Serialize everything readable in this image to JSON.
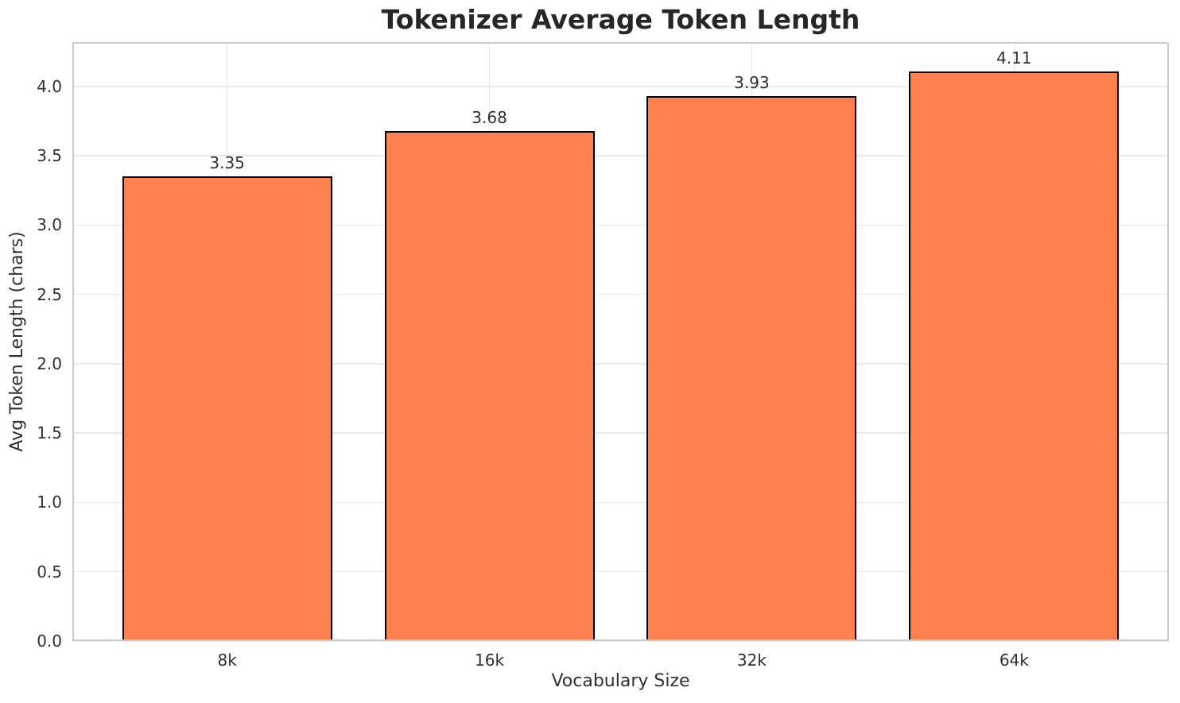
{
  "chart_data": {
    "type": "bar",
    "title": "Tokenizer Average Token Length",
    "xlabel": "Vocabulary Size",
    "ylabel": "Avg Token Length (chars)",
    "categories": [
      "8k",
      "16k",
      "32k",
      "64k"
    ],
    "values": [
      3.35,
      3.68,
      3.93,
      4.11
    ],
    "value_labels": [
      "3.35",
      "3.68",
      "3.93",
      "4.11"
    ],
    "ytick_values": [
      0.0,
      0.5,
      1.0,
      1.5,
      2.0,
      2.5,
      3.0,
      3.5,
      4.0
    ],
    "ytick_labels": [
      "0.0",
      "0.5",
      "1.0",
      "1.5",
      "2.0",
      "2.5",
      "3.0",
      "3.5",
      "4.0"
    ],
    "ylim": [
      0,
      4.32
    ],
    "grid": true,
    "legend": null,
    "colors": {
      "bar_fill": "#FF7F50",
      "bar_edge": "#000000",
      "gridline": "#e9e9e9",
      "spine": "#cccccc",
      "title_text": "#262626",
      "tick_text": "#303030",
      "background": "#ffffff"
    }
  }
}
